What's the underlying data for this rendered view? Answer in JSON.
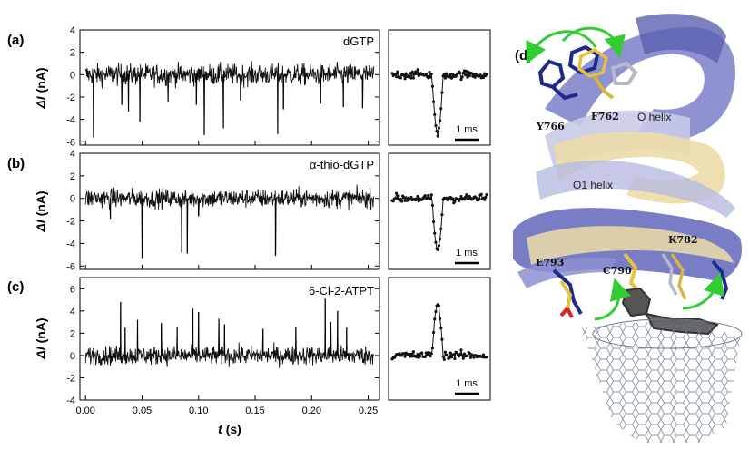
{
  "figure": {
    "panel_labels": [
      "(a)",
      "(b)",
      "(c)",
      "(d)"
    ],
    "y_label_main": "ΔI",
    "y_label_unit": " (nA)",
    "x_label_main": "t",
    "x_label_unit": " (s)",
    "scale_bar": "1 ms",
    "colors": {
      "trace": "#111111",
      "helix_blue": "#6a6fc0",
      "helix_gold": "#e8d7a0",
      "nanotube": "#6b7a8c",
      "arrow": "#33cc33"
    }
  },
  "chart_data": [
    {
      "type": "line",
      "panel": "(a)",
      "annotation": "dGTP",
      "xlabel": "t (s)",
      "ylabel": "ΔI (nA)",
      "xlim": [
        -0.005,
        0.26
      ],
      "ylim": [
        -6.3,
        4
      ],
      "yticks": [
        -6,
        -4,
        -2,
        0,
        2,
        4
      ],
      "baseline_noise_nA": 0.9,
      "spikes": [
        [
          0.007,
          -5.6
        ],
        [
          0.032,
          -2.7
        ],
        [
          0.038,
          -3.3
        ],
        [
          0.048,
          -4.2
        ],
        [
          0.073,
          -2.4
        ],
        [
          0.098,
          -2.7
        ],
        [
          0.105,
          -5.4
        ],
        [
          0.122,
          -4.8
        ],
        [
          0.137,
          -2.3
        ],
        [
          0.17,
          -5.3
        ],
        [
          0.175,
          -3.1
        ],
        [
          0.208,
          -2.6
        ],
        [
          0.228,
          -2.9
        ],
        [
          0.245,
          -3.0
        ]
      ],
      "inset": {
        "min": -5.6,
        "scale_bar": "1 ms"
      }
    },
    {
      "type": "line",
      "panel": "(b)",
      "annotation": "α-thio-dGTP",
      "xlabel": "t (s)",
      "ylabel": "ΔI (nA)",
      "xlim": [
        -0.005,
        0.26
      ],
      "ylim": [
        -6.3,
        4
      ],
      "yticks": [
        -6,
        -4,
        -2,
        0,
        2,
        4
      ],
      "baseline_noise_nA": 0.8,
      "spikes": [
        [
          0.022,
          -1.8
        ],
        [
          0.05,
          -5.3
        ],
        [
          0.085,
          -4.8
        ],
        [
          0.09,
          -4.9
        ],
        [
          0.1,
          -1.6
        ],
        [
          0.168,
          -5.1
        ]
      ],
      "inset": {
        "min": -4.8,
        "scale_bar": "1 ms"
      }
    },
    {
      "type": "line",
      "panel": "(c)",
      "annotation": "6-Cl-2-ATPT",
      "xlabel": "t (s)",
      "ylabel": "ΔI (nA)",
      "xlim": [
        -0.005,
        0.26
      ],
      "ylim": [
        -4,
        7
      ],
      "yticks": [
        -4,
        -2,
        0,
        2,
        4,
        6
      ],
      "xticks": [
        0.0,
        0.05,
        0.1,
        0.15,
        0.2,
        0.25
      ],
      "xticklabels": [
        "0.00",
        "0.05",
        "0.10",
        "0.15",
        "0.20",
        "0.25"
      ],
      "baseline_noise_nA": 0.8,
      "spikes": [
        [
          0.031,
          4.8
        ],
        [
          0.035,
          2.5
        ],
        [
          0.046,
          3.2
        ],
        [
          0.067,
          2.9
        ],
        [
          0.081,
          2.6
        ],
        [
          0.095,
          4.2
        ],
        [
          0.1,
          3.9
        ],
        [
          0.118,
          3.3
        ],
        [
          0.123,
          2.8
        ],
        [
          0.157,
          2.4
        ],
        [
          0.186,
          2.6
        ],
        [
          0.212,
          5.1
        ],
        [
          0.217,
          3.0
        ],
        [
          0.223,
          4.0
        ],
        [
          0.231,
          2.5
        ]
      ],
      "inset": {
        "max": 4.8,
        "scale_bar": "1 ms"
      }
    }
  ],
  "structure_labels": {
    "o_helix": "O helix",
    "o1_helix": "O1 helix",
    "y766": "Y766",
    "f762": "F762",
    "c790": "C790",
    "k782": "K782",
    "e793": "E793"
  }
}
